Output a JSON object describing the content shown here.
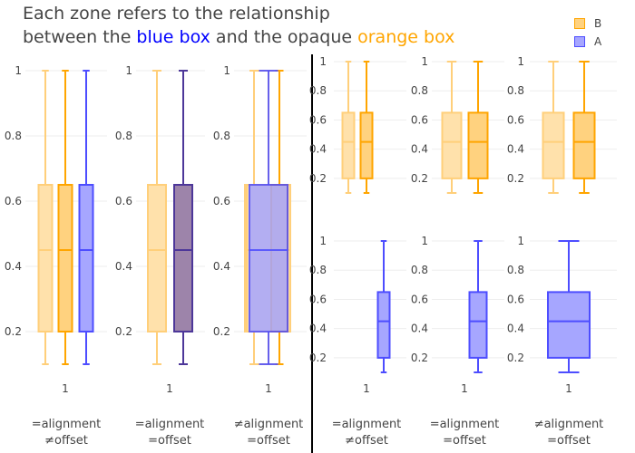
{
  "chart_data": {
    "type": "box",
    "title": {
      "line1": "Each zone refers to the relationship",
      "line2_prefix": "between the ",
      "blue_word": "blue box",
      "line2_middle": " and the opaque ",
      "orange_word": "orange box"
    },
    "legend": {
      "placement": "top-right",
      "entries": [
        {
          "name": "B",
          "fill": "#ffd27f",
          "stroke": "#ffa500"
        },
        {
          "name": "A",
          "fill": "#a6a6ff",
          "stroke": "#4d4dff"
        }
      ]
    },
    "colors": {
      "blue": "#0000ff",
      "orange": "#ffa500",
      "faded_fill": "#ffe1ab",
      "faded_stroke": "#ffcf7a",
      "overlap_fill": "#9d84aa",
      "overlap_stroke": "#4d3799",
      "divider": "#000000"
    },
    "box_stats": {
      "min": 0.1,
      "q1": 0.2,
      "median": 0.45,
      "q3": 0.65,
      "max": 1.0
    },
    "x_tick_label": "1",
    "panels": [
      {
        "caption": [
          "=alignment",
          "≠offset"
        ],
        "y_ticks": [
          0.2,
          0.4,
          0.6,
          0.8,
          1
        ]
      },
      {
        "caption": [
          "=alignment",
          "=offset"
        ],
        "y_ticks": [
          0.2,
          0.4,
          0.6,
          0.8,
          1
        ]
      },
      {
        "caption": [
          "≠alignment",
          "=offset"
        ],
        "y_ticks": [
          0.2,
          0.4,
          0.6,
          0.8,
          1
        ]
      },
      {
        "caption": [
          "=alignment",
          "≠offset"
        ],
        "y_ticks": [
          0.2,
          0.4,
          0.6,
          0.8,
          1
        ]
      },
      {
        "caption": [
          "=alignment",
          "=offset"
        ],
        "y_ticks": [
          0.2,
          0.4,
          0.6,
          0.8,
          1
        ]
      },
      {
        "caption": [
          "≠alignment",
          "=offset"
        ],
        "y_ticks": [
          0.2,
          0.4,
          0.6,
          0.8,
          1
        ]
      }
    ]
  }
}
